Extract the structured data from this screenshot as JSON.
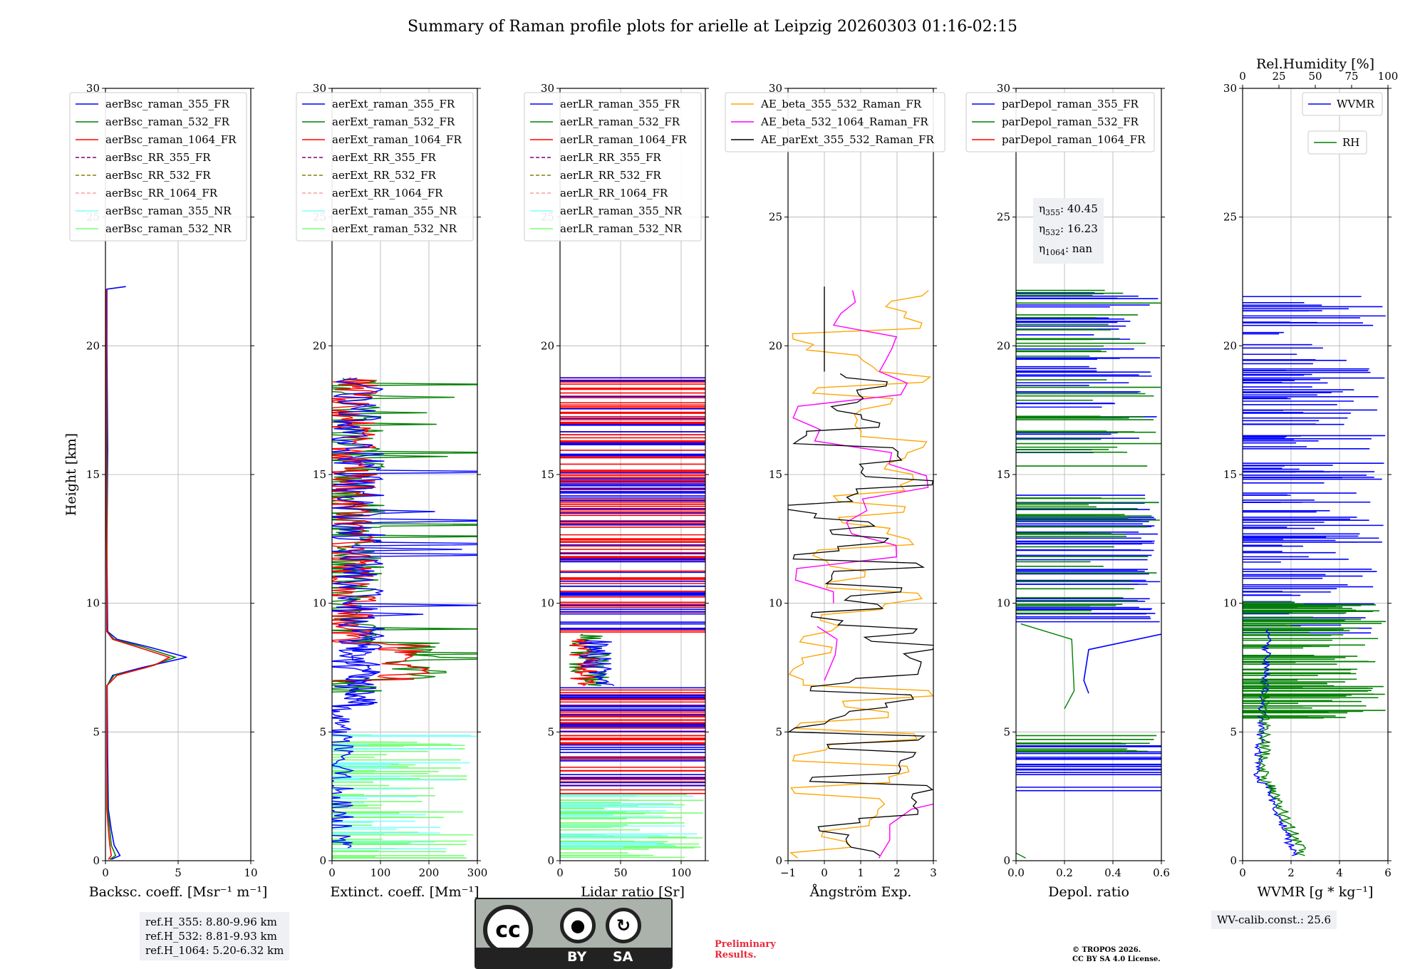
{
  "title": "Summary of Raman profile plots for arielle at Leipzig 20260303 01:16-02:15",
  "colors": {
    "blue": "#0000ff",
    "green": "#008000",
    "red": "#ff0000",
    "purple": "#800080",
    "olive": "#808000",
    "salmon": "#ff9e9e",
    "cyan": "#7fffff",
    "lightgreen": "#77ff77",
    "orange": "#ffa500",
    "magenta": "#ff00ff",
    "black": "#000000",
    "annotation_bg": "#eef0f4",
    "preliminary": "#e8283a"
  },
  "chart_data": [
    {
      "type": "line",
      "xlabel": "Backsc. coeff. [Msr⁻¹ m⁻¹]",
      "ylabel": "Height [km]",
      "xlim": [
        0,
        10
      ],
      "ylim": [
        0,
        30
      ],
      "xticks": [
        0,
        5,
        10
      ],
      "yticks": [
        0,
        5,
        10,
        15,
        20,
        25,
        30
      ],
      "grid": true,
      "legend": [
        "aerBsc_raman_355_FR",
        "aerBsc_raman_532_FR",
        "aerBsc_raman_1064_FR",
        "aerBsc_RR_355_FR",
        "aerBsc_RR_532_FR",
        "aerBsc_RR_1064_FR",
        "aerBsc_raman_355_NR",
        "aerBsc_raman_532_NR"
      ],
      "series": [
        {
          "name": "aerBsc_raman_355_FR",
          "points": [
            [
              0.4,
              0.05
            ],
            [
              1.0,
              0.2
            ],
            [
              0.6,
              0.6
            ],
            [
              0.4,
              1.2
            ],
            [
              0.2,
              2.0
            ],
            [
              0.15,
              4.0
            ],
            [
              0.12,
              6.8
            ],
            [
              0.5,
              7.2
            ],
            [
              2.5,
              7.5
            ],
            [
              5.6,
              7.9
            ],
            [
              3.0,
              8.3
            ],
            [
              0.8,
              8.6
            ],
            [
              0.15,
              8.9
            ],
            [
              0.1,
              12
            ],
            [
              0.15,
              16
            ],
            [
              0.1,
              20
            ],
            [
              0.1,
              22.2
            ],
            [
              1.4,
              22.3
            ]
          ]
        },
        {
          "name": "aerBsc_raman_532_FR",
          "points": [
            [
              0.3,
              0.05
            ],
            [
              0.7,
              0.2
            ],
            [
              0.4,
              0.6
            ],
            [
              0.3,
              1.2
            ],
            [
              0.15,
              2.0
            ],
            [
              0.1,
              4.0
            ],
            [
              0.1,
              6.8
            ],
            [
              0.6,
              7.2
            ],
            [
              2.8,
              7.5
            ],
            [
              4.8,
              7.9
            ],
            [
              2.6,
              8.3
            ],
            [
              0.6,
              8.6
            ],
            [
              0.1,
              8.9
            ],
            [
              0.1,
              15
            ],
            [
              0.05,
              22.2
            ]
          ]
        },
        {
          "name": "aerBsc_raman_1064_FR",
          "points": [
            [
              0.2,
              0.05
            ],
            [
              0.4,
              0.2
            ],
            [
              0.3,
              0.6
            ],
            [
              0.2,
              1.2
            ],
            [
              0.1,
              2.0
            ],
            [
              0.1,
              4.0
            ],
            [
              0.1,
              6.8
            ],
            [
              0.8,
              7.2
            ],
            [
              3.4,
              7.6
            ],
            [
              4.4,
              7.9
            ],
            [
              2.2,
              8.3
            ],
            [
              0.5,
              8.6
            ],
            [
              0.1,
              8.9
            ],
            [
              0.05,
              15
            ],
            [
              0.05,
              22.2
            ]
          ]
        }
      ]
    },
    {
      "type": "line",
      "xlabel": "Extinct. coeff. [Mm⁻¹]",
      "xlim": [
        0,
        300
      ],
      "ylim": [
        0,
        30
      ],
      "xticks": [
        0,
        100,
        200,
        300
      ],
      "yticks": [
        0,
        5,
        10,
        15,
        20,
        25,
        30
      ],
      "grid": true,
      "legend": [
        "aerExt_raman_355_FR",
        "aerExt_raman_532_FR",
        "aerExt_raman_1064_FR",
        "aerExt_RR_355_FR",
        "aerExt_RR_532_FR",
        "aerExt_RR_1064_FR",
        "aerExt_raman_355_NR",
        "aerExt_raman_532_NR"
      ]
    },
    {
      "type": "line",
      "xlabel": "Lidar ratio [Sr]",
      "xlim": [
        0,
        120
      ],
      "ylim": [
        0,
        30
      ],
      "xticks": [
        0,
        50,
        100
      ],
      "yticks": [
        0,
        5,
        10,
        15,
        20,
        25,
        30
      ],
      "grid": true,
      "legend": [
        "aerLR_raman_355_FR",
        "aerLR_raman_532_FR",
        "aerLR_raman_1064_FR",
        "aerLR_RR_355_FR",
        "aerLR_RR_532_FR",
        "aerLR_RR_1064_FR",
        "aerLR_raman_355_NR",
        "aerLR_raman_532_NR"
      ]
    },
    {
      "type": "line",
      "xlabel": "Ångström Exp.",
      "xlim": [
        -1,
        3
      ],
      "ylim": [
        0,
        30
      ],
      "xticks": [
        -1,
        0,
        1,
        2,
        3
      ],
      "yticks": [
        0,
        5,
        10,
        15,
        20,
        25,
        30
      ],
      "grid": true,
      "legend": [
        "AE_beta_355_532_Raman_FR",
        "AE_beta_532_1064_Raman_FR",
        "AE_parExt_355_532_Raman_FR"
      ]
    },
    {
      "type": "line",
      "xlabel": "Depol. ratio",
      "xlim": [
        0,
        0.6
      ],
      "ylim": [
        0,
        30
      ],
      "xticks": [
        0.0,
        0.2,
        0.4,
        0.6
      ],
      "yticks": [
        0,
        5,
        10,
        15,
        20,
        25,
        30
      ],
      "grid": true,
      "legend": [
        "parDepol_raman_355_FR",
        "parDepol_raman_532_FR",
        "parDepol_raman_1064_FR"
      ]
    },
    {
      "type": "line",
      "xlabel": "WVMR [g * kg⁻¹]",
      "xlabel_top": "Rel.Humidity [%]",
      "xlim": [
        0,
        6
      ],
      "xlim_top": [
        0,
        100
      ],
      "ylim": [
        0,
        30
      ],
      "xticks": [
        0,
        2,
        4,
        6
      ],
      "xticks_top": [
        0,
        25,
        50,
        75,
        100
      ],
      "yticks": [
        0,
        5,
        10,
        15,
        20,
        25,
        30
      ],
      "grid": true,
      "legend": [
        "WVMR",
        "RH"
      ]
    }
  ],
  "annotations": {
    "ref_heights": [
      "ref.H_355: 8.80-9.96 km",
      "ref.H_532: 8.81-9.93 km",
      "ref.H_1064: 5.20-6.32 km"
    ],
    "eta": [
      {
        "label": "η",
        "sub": "355",
        "value": ": 40.45"
      },
      {
        "label": "η",
        "sub": "532",
        "value": ": 16.23"
      },
      {
        "label": "η",
        "sub": "1064",
        "value": ": nan"
      }
    ],
    "wv_calib": "WV-calib.const.: 25.6",
    "preliminary": [
      "Preliminary",
      "Results."
    ],
    "copyright": [
      "© TROPOS 2026.",
      "CC BY SA 4.0 License."
    ],
    "license_badge": {
      "cc": "cc",
      "by": "BY",
      "sa": "SA"
    }
  }
}
